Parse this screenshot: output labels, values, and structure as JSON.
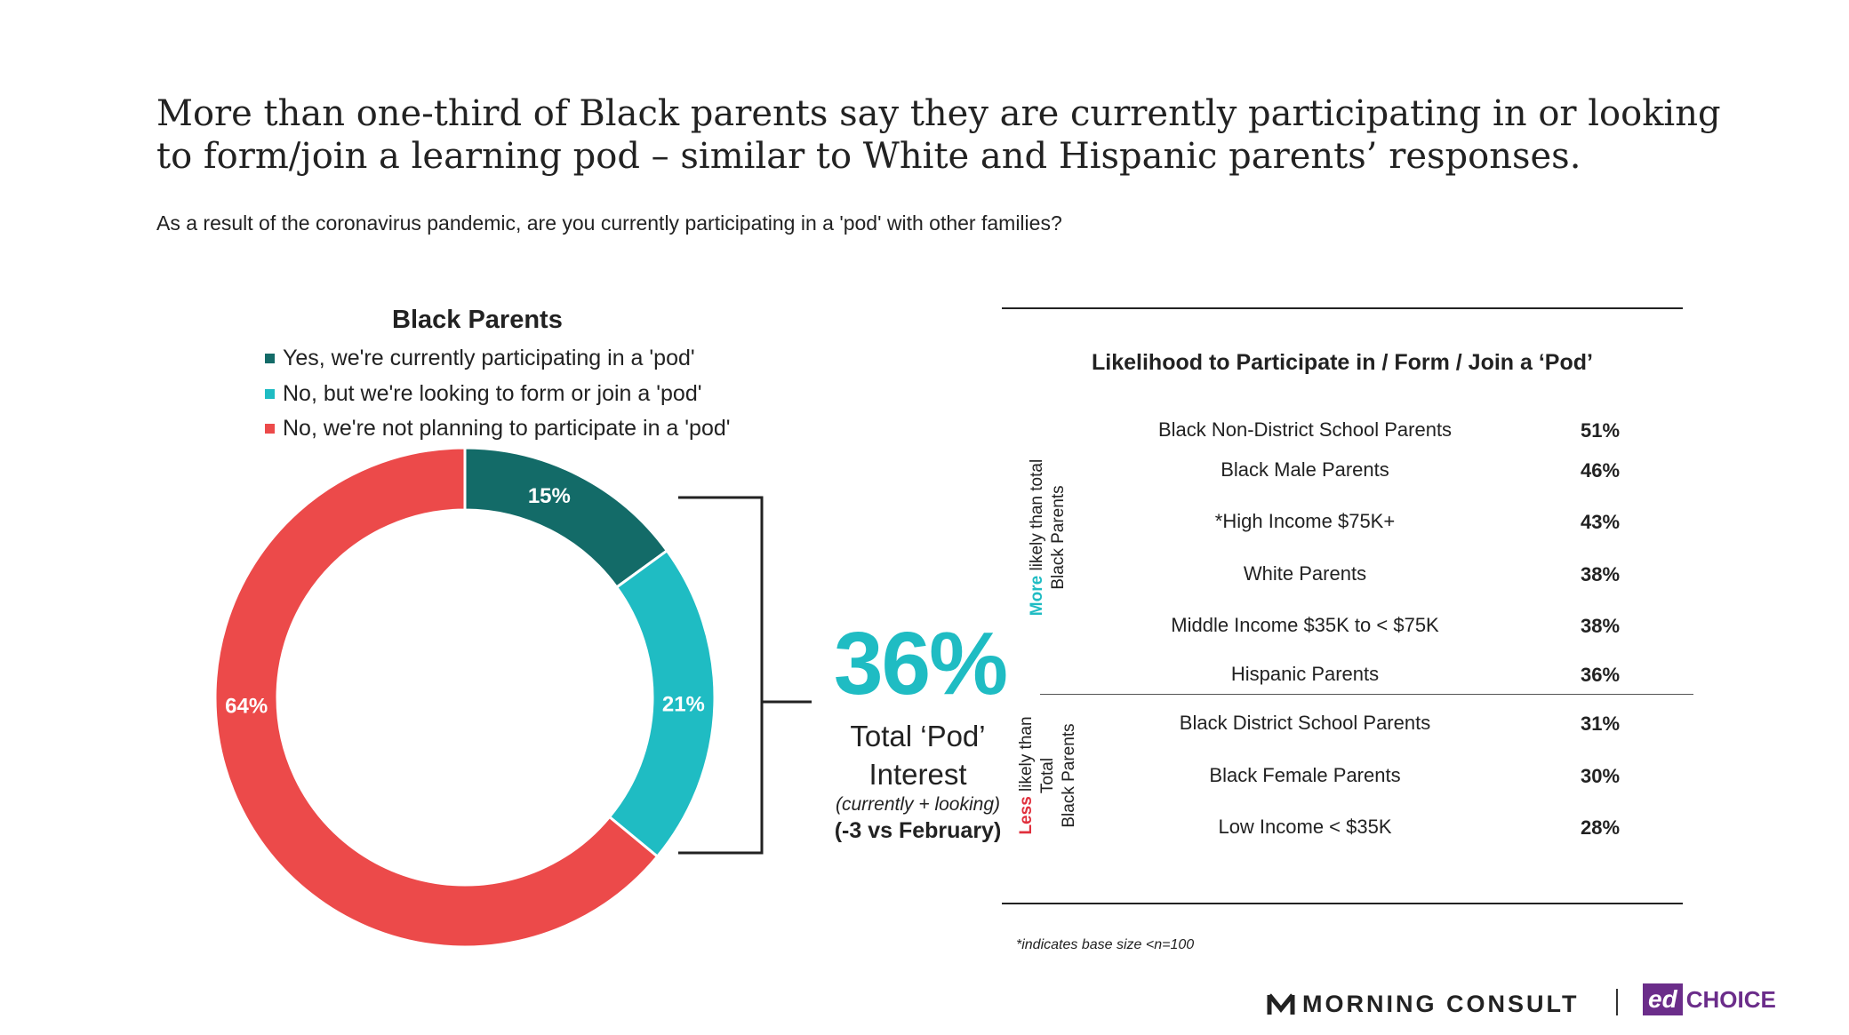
{
  "header": {
    "headline": "More than one-third of Black parents say they are currently participating in or looking to form/join a learning pod – similar to White and Hispanic parents’ responses.",
    "question": "As a result of the coronavirus pandemic, are you currently participating in a 'pod' with other families?"
  },
  "chart_data": [
    {
      "type": "pie",
      "title": "Black Parents",
      "categories": [
        "Yes, we're currently participating in a 'pod'",
        "No, but we're looking to form or join a 'pod'",
        "No, we're not planning to participate in a 'pod'"
      ],
      "values": [
        15,
        21,
        64
      ],
      "data_labels": [
        "15%",
        "21%",
        "64%"
      ],
      "colors": [
        "#136b68",
        "#1fbcc3",
        "#ec4a4a"
      ],
      "donut": true,
      "legend_placement": "top"
    },
    {
      "type": "table",
      "title": "Likelihood to Participate in / Form / Join a ‘Pod’",
      "groups": [
        {
          "emphasis": "More",
          "rest_line1": " likely than total",
          "line2": "Black Parents",
          "emphasis_color": "#1fbcc3",
          "rows": [
            {
              "label": "Black Non-District School Parents",
              "value": "51%"
            },
            {
              "label": "Black Male Parents",
              "value": "46%"
            },
            {
              "label": "*High Income $75K+",
              "value": "43%"
            },
            {
              "label": "White Parents",
              "value": "38%"
            },
            {
              "label": "Middle Income $35K to < $75K",
              "value": "38%"
            },
            {
              "label": "Hispanic Parents",
              "value": "36%"
            }
          ]
        },
        {
          "emphasis": "Less",
          "rest_line1": " likely than",
          "line2": "Total",
          "line3": "Black Parents",
          "emphasis_color": "#e0303d",
          "rows": [
            {
              "label": "Black District School Parents",
              "value": "31%"
            },
            {
              "label": "Black Female Parents",
              "value": "30%"
            },
            {
              "label": "Low Income < $35K",
              "value": "28%"
            }
          ]
        }
      ]
    }
  ],
  "callout": {
    "big_value": "36%",
    "line1": "Total ‘Pod’",
    "line2": "Interest",
    "line3": "(currently + looking)",
    "line4": "(-3 vs February)",
    "accent": "#1fbcc3"
  },
  "footnote": "*indicates base size <n=100",
  "brands": {
    "primary": "MORNING CONSULT",
    "secondary_mark": "ed",
    "secondary_text": "CHOICE",
    "secondary_color": "#6b2d8a"
  }
}
